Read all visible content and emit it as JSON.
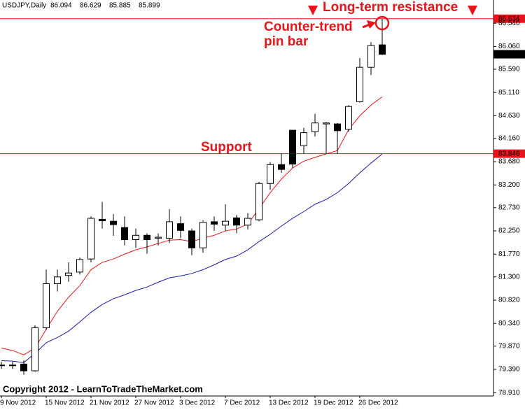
{
  "chart_data": {
    "type": "candlestick",
    "title": "USDJPY,Daily",
    "header_values": [
      86.094,
      86.629,
      85.885,
      85.899
    ],
    "categories": [
      "9 Nov 2012",
      null,
      null,
      null,
      "15 Nov 2012",
      null,
      null,
      null,
      "21 Nov 2012",
      null,
      null,
      null,
      "27 Nov 2012",
      null,
      null,
      null,
      "3 Dec 2012",
      null,
      null,
      null,
      "7 Dec 2012",
      null,
      null,
      null,
      "13 Dec 2012",
      null,
      null,
      null,
      "19 Dec 2012",
      null,
      null,
      null,
      "26 Dec 2012",
      null,
      null
    ],
    "open": [
      79.47,
      79.48,
      79.5,
      79.36,
      80.25,
      81.16,
      81.33,
      81.4,
      81.67,
      82.49,
      82.45,
      82.32,
      82.07,
      82.16,
      82.1,
      82.1,
      82.4,
      82.25,
      81.9,
      82.44,
      82.37,
      82.52,
      82.37,
      82.48,
      83.23,
      83.62,
      84.33,
      84.01,
      84.3,
      84.46,
      84.46,
      84.35,
      84.92,
      85.63,
      86.094
    ],
    "high": [
      79.55,
      79.55,
      79.58,
      80.3,
      81.45,
      81.45,
      81.6,
      81.7,
      82.55,
      82.85,
      82.6,
      82.55,
      82.3,
      82.2,
      82.2,
      82.7,
      82.55,
      82.3,
      82.47,
      82.55,
      82.8,
      82.58,
      82.62,
      83.26,
      83.67,
      83.85,
      84.33,
      84.38,
      84.67,
      84.5,
      84.48,
      84.85,
      85.82,
      86.15,
      86.629
    ],
    "low": [
      79.4,
      79.4,
      79.28,
      79.34,
      80.2,
      81.0,
      81.2,
      81.35,
      81.6,
      82.3,
      82.15,
      81.95,
      81.9,
      81.78,
      81.95,
      82.0,
      82.1,
      81.75,
      81.8,
      82.25,
      82.25,
      82.2,
      82.28,
      82.45,
      83.1,
      83.45,
      83.55,
      83.85,
      84.2,
      83.85,
      83.84,
      84.3,
      84.9,
      85.47,
      85.885
    ],
    "close": [
      79.48,
      79.47,
      79.36,
      80.25,
      81.16,
      81.3,
      81.38,
      81.66,
      82.51,
      82.46,
      82.38,
      82.07,
      82.16,
      82.07,
      82.12,
      82.44,
      82.26,
      81.9,
      82.43,
      82.39,
      82.45,
      82.37,
      82.51,
      83.23,
      83.62,
      83.52,
      83.63,
      84.28,
      84.48,
      84.48,
      84.32,
      84.82,
      85.63,
      86.08,
      85.899
    ],
    "up_color": "#ffffff",
    "down_color": "#000000",
    "series": [
      {
        "color": "#e8141c",
        "values": [
          79.83,
          79.78,
          79.69,
          79.83,
          80.22,
          80.59,
          80.88,
          81.12,
          81.45,
          81.6,
          81.67,
          81.77,
          81.86,
          81.92,
          81.99,
          82.06,
          82.07,
          82.03,
          82.1,
          82.16,
          82.25,
          82.29,
          82.39,
          82.71,
          83.04,
          83.32,
          83.55,
          83.69,
          83.77,
          83.84,
          83.91,
          84.34,
          84.63,
          84.85,
          85.02
        ]
      },
      {
        "color": "#1a1aa6",
        "values": [
          79.57,
          79.56,
          79.53,
          79.72,
          79.94,
          80.05,
          80.18,
          80.37,
          80.57,
          80.73,
          80.85,
          80.93,
          81.02,
          81.09,
          81.19,
          81.28,
          81.32,
          81.37,
          81.45,
          81.55,
          81.66,
          81.73,
          81.86,
          82.03,
          82.18,
          82.35,
          82.51,
          82.65,
          82.8,
          82.9,
          83.04,
          83.23,
          83.45,
          83.65,
          83.84
        ]
      }
    ],
    "ylim": [
      78.84,
      87.02
    ],
    "yticks": [
      {
        "value": 86.54,
        "label": "86.540"
      },
      {
        "value": 86.06,
        "label": "86.060"
      },
      {
        "value": 85.59,
        "label": "85.590"
      },
      {
        "value": 85.11,
        "label": "85.110"
      },
      {
        "value": 84.63,
        "label": "84.630"
      },
      {
        "value": 84.16,
        "label": "84.160"
      },
      {
        "value": 83.68,
        "label": "83.680"
      },
      {
        "value": 83.2,
        "label": "83.200"
      },
      {
        "value": 82.73,
        "label": "82.730"
      },
      {
        "value": 82.25,
        "label": "82.250"
      },
      {
        "value": 81.77,
        "label": "81.770"
      },
      {
        "value": 81.3,
        "label": "81.300"
      },
      {
        "value": 80.82,
        "label": "80.820"
      },
      {
        "value": 80.34,
        "label": "80.340"
      },
      {
        "value": 79.87,
        "label": "79.870"
      },
      {
        "value": 79.39,
        "label": "79.390"
      },
      {
        "value": 78.91,
        "label": "78.910"
      }
    ],
    "hlines": [
      {
        "value": 86.634,
        "color": "#e8141c"
      },
      {
        "value": 83.846,
        "color": "#e8141c"
      }
    ],
    "current_price": 85.899,
    "annotations": {
      "resistance": "Long-term resistance",
      "pin_bar": [
        "Counter-trend",
        "pin bar"
      ],
      "support": "Support"
    },
    "copyright": "Copyright 2012 - LearnToTradeTheMarket.com",
    "grid": false
  }
}
